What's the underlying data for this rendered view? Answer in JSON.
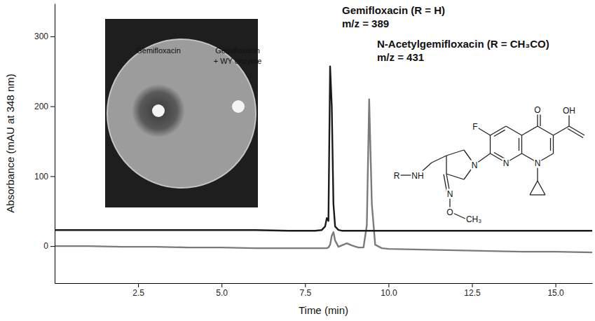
{
  "chart_data": {
    "type": "line",
    "x_label": "Time (min)",
    "y_label": "Absorbance (mAU at 348 nm)",
    "x": [
      0,
      1,
      2,
      3,
      4,
      5,
      6,
      7,
      7.8,
      8.0,
      8.1,
      8.15,
      8.2,
      8.25,
      8.3,
      8.35,
      8.4,
      8.5,
      8.6,
      8.75,
      8.9,
      9.1,
      9.25,
      9.35,
      9.42,
      9.5,
      9.6,
      9.8,
      10,
      11,
      12,
      13,
      14,
      15,
      16.1
    ],
    "series": [
      {
        "color": "#1a1a1a",
        "line_style": "solid",
        "values": [
          23,
          23,
          23,
          23,
          23,
          23,
          23,
          22,
          22,
          23,
          28,
          40,
          36,
          257,
          200,
          60,
          28,
          23,
          22,
          22,
          22,
          22,
          22,
          22,
          22,
          22,
          22,
          22,
          22,
          22,
          22,
          22,
          22,
          22,
          22
        ]
      },
      {
        "color": "#7a7a7a",
        "line_style": "solid",
        "values": [
          0,
          0,
          -1,
          -1,
          -2,
          -2,
          -3,
          -3,
          -3,
          -3,
          -3,
          -3,
          -2,
          2,
          15,
          20,
          8,
          -1,
          1,
          4,
          1,
          -2,
          -2,
          30,
          210,
          60,
          2,
          -3,
          -4,
          -5,
          -6,
          -7,
          -8,
          -8,
          -9
        ]
      }
    ],
    "xlim": [
      0,
      16.1
    ],
    "ylim": [
      -53,
      347
    ],
    "xticks": [
      2.5,
      {
        "value": 5,
        "label": "5.0"
      },
      7.5,
      {
        "value": 10,
        "label": "10.0"
      },
      12.5,
      {
        "value": 15,
        "label": "15.0"
      }
    ],
    "yticks": [
      0,
      100,
      200,
      300
    ],
    "grid": false,
    "annotations": [
      [
        "Gemifloxacin (R = H)",
        "m/z = 389"
      ],
      [
        "N-Acetylgemifloxacin (R = CH₃CO)",
        "m/z = 431"
      ]
    ],
    "inset": {
      "labels": [
        [
          "Gemifloxacin"
        ],
        [
          "Gemifloxacin",
          "+ WY enzyme"
        ]
      ]
    },
    "structure": {
      "labels": [
        "O",
        "OH",
        "F",
        "N",
        "N",
        "N",
        "NH",
        "R",
        "N",
        "O",
        "CH₃"
      ]
    }
  }
}
